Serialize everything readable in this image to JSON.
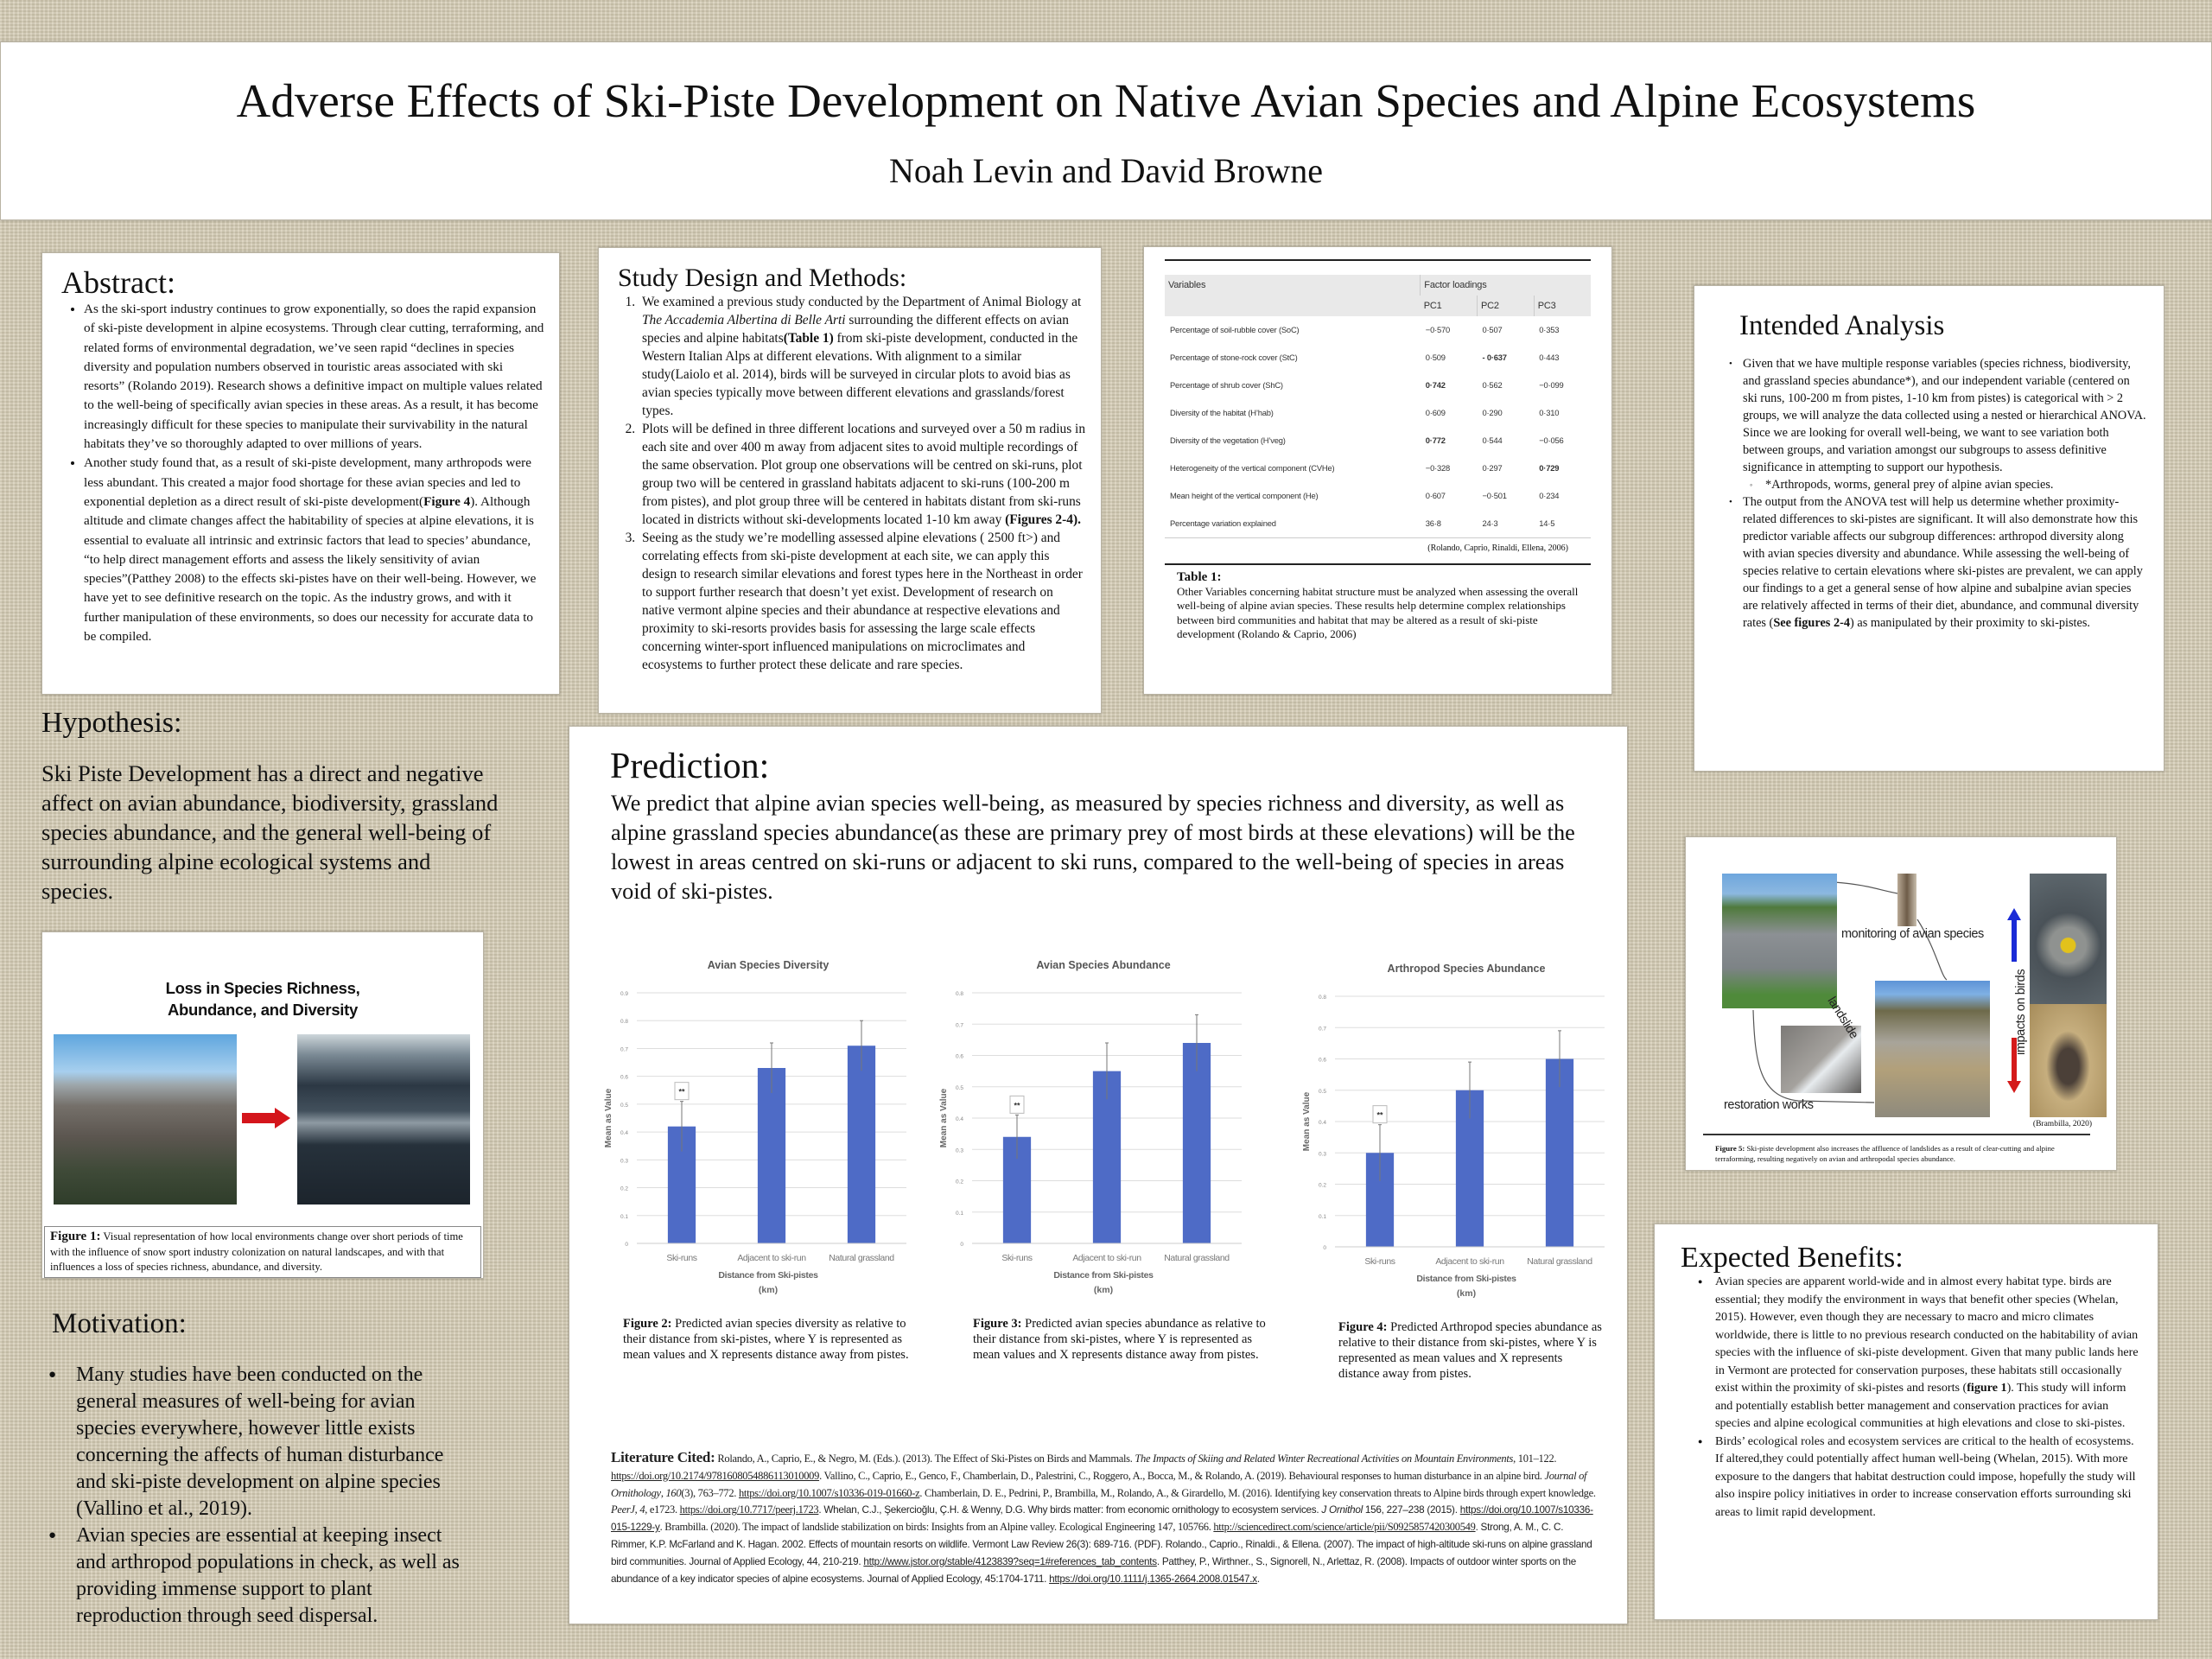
{
  "header": {
    "title": "Adverse Effects of Ski-Piste Development on Native Avian Species and Alpine Ecosystems",
    "authors": "Noah Levin and David Browne"
  },
  "abstract": {
    "heading": "Abstract:",
    "items": [
      [
        {
          "t": "As the ski-sport industry continues to grow exponentially, so does the rapid expansion of ski-piste development in alpine ecosystems. Through clear cutting, terraforming, and related forms of environmental degradation, we’ve seen rapid “declines in species diversity and population numbers observed in touristic areas associated with ski resorts” (Rolando 2019). Research shows a definitive impact on multiple values related to the well-being of specifically avian species in these areas. As a result, it has become increasingly difficult for these species to manipulate their survivability in the natural habitats they’ve so thoroughly adapted to over millions of years."
        }
      ],
      [
        {
          "t": "Another study found that, as a result of ski-piste development, many arthropods were less abundant.  This created a major food shortage for these avian species and led to exponential depletion as a direct result of ski-piste development("
        },
        {
          "t": "Figure 4",
          "s": "b"
        },
        {
          "t": "). Although altitude and climate changes affect the habitability of species at alpine elevations, it is essential to evaluate all intrinsic and extrinsic factors that lead to species’ abundance, “to help direct management efforts and assess the likely sensitivity of avian species”(Patthey 2008) to the effects ski-pistes have on their well-being.  However, we have yet to see definitive research on the topic. As the industry grows, and with it further manipulation of these environments, so does our necessity for accurate data to be compiled."
        }
      ]
    ]
  },
  "methods": {
    "heading": "Study Design and Methods:",
    "items": [
      [
        {
          "t": "We examined a previous study conducted by the Department of Animal Biology at "
        },
        {
          "t": "The Accademia Albertina di Belle Arti",
          "s": "i"
        },
        {
          "t": " surrounding the different effects on avian species and alpine habitats"
        },
        {
          "t": "(Table 1)",
          "s": "b"
        },
        {
          "t": " from ski-piste development, conducted in the Western Italian Alps at different elevations. With alignment to a similar study(Laiolo et al. 2014), birds will be surveyed in circular plots to avoid bias as avian species typically move between different elevations and grasslands/forest types."
        }
      ],
      [
        {
          "t": " Plots will be defined in three different locations and surveyed over a 50 m radius in each site and over 400 m away from adjacent sites to avoid multiple recordings of the same observation. Plot group one observations will be centred on ski-runs, plot group two will be centered in grassland habitats adjacent to ski-runs (100-200 m from pistes), and plot group three will be centered in habitats distant from ski-runs located in districts without ski-developments located 1-10 km away "
        },
        {
          "t": "(Figures 2-4).",
          "s": "b"
        }
      ],
      [
        {
          "t": "Seeing as the study we’re modelling assessed alpine elevations ( 2500 ft>) and correlating effects from ski-piste development at each site, we can apply this design to research similar elevations and forest types here in the Northeast in order to support further research that doesn’t yet exist. Development of research on native vermont alpine species and their abundance at respective elevations and proximity to ski-resorts provides basis for assessing the large scale effects concerning winter-sport influenced manipulations on microclimates and ecosystems to further protect these delicate and rare species."
        }
      ]
    ]
  },
  "table1": {
    "col_variables": "Variables",
    "col_group": "Factor loadings",
    "cols": [
      "PC1",
      "PC2",
      "PC3"
    ],
    "rows": [
      {
        "label": "Percentage of soil-rubble cover (SoC)",
        "v": [
          "−0·570",
          "0·507",
          "0·353"
        ]
      },
      {
        "label": "Percentage of stone-rock cover (StC)",
        "v": [
          "0·509",
          "- 0·637",
          "0·443"
        ]
      },
      {
        "label": "Percentage of shrub cover (ShC)",
        "v": [
          "0·742",
          "0·562",
          "−0·099"
        ]
      },
      {
        "label": "Diversity of the habitat (H’hab)",
        "v": [
          "0·609",
          "0·290",
          "0·310"
        ]
      },
      {
        "label": "Diversity of the vegetation (H’veg)",
        "v": [
          "0·772",
          "0·544",
          "−0·056"
        ]
      },
      {
        "label": "Heterogeneity of the vertical component (CVHe)",
        "v": [
          "−0·328",
          "0·297",
          "0·729"
        ]
      },
      {
        "label": "Mean height of the vertical component (He)",
        "v": [
          "0·607",
          "−0·501",
          "0·234"
        ]
      },
      {
        "label": "Percentage variation explained",
        "v": [
          "36·8",
          "24·3",
          "14·5"
        ]
      }
    ],
    "bold_cells": [
      [
        1,
        1
      ],
      [
        2,
        0
      ],
      [
        4,
        0
      ],
      [
        5,
        2
      ]
    ],
    "source": "(Rolando, Caprio, Rinaldi, Ellena, 2006)",
    "caption_label": "Table 1:",
    "caption": "Other Variables concerning habitat structure must be analyzed when assessing the overall well-being of alpine avian species. These results help determine complex relationships between bird communities and habitat that may be altered as a result of ski-piste development (Rolando & Caprio, 2006)"
  },
  "analysis": {
    "heading": "Intended Analysis",
    "item1": "Given that we have multiple response variables (species richness, biodiversity, and grassland species abundance*), and our independent variable (centered on ski runs, 100-200 m from pistes, 1-10 km from pistes) is categorical with > 2 groups, we will analyze the data collected using a nested or hierarchical ANOVA. Since we are looking for overall well-being, we want to see variation both between groups, and variation amongst our subgroups to assess definitive significance in attempting to support our hypothesis.",
    "sub": "*Arthropods, worms, general prey of alpine avian species.",
    "item2": [
      {
        "t": "The output from the ANOVA test will help us determine whether proximity-related differences to ski-pistes are significant.  It will also demonstrate how this predictor variable affects our subgroup differences: arthropod diversity along with avian species diversity and abundance. While assessing the well-being of species relative to certain elevations where ski-pistes are prevalent, we can apply our findings to a get a general sense of how alpine and subalpine avian species are relatively affected in terms of their diet, abundance, and communal diversity rates ("
      },
      {
        "t": "See figures 2-4",
        "s": "b"
      },
      {
        "t": ") as manipulated by their proximity to ski-pistes."
      }
    ]
  },
  "hypothesis": {
    "heading": "Hypothesis:",
    "text": "Ski Piste Development has a direct and negative affect on avian abundance, biodiversity, grassland species abundance, and the general well-being of surrounding alpine ecological systems and species."
  },
  "figure1": {
    "title_line1": "Loss in Species Richness,",
    "title_line2": "Abundance, and Diversity",
    "caption_label": "Figure 1:",
    "caption": " Visual representation of how local environments change over short periods of time with the influence of snow sport industry colonization on natural landscapes, and with that influences a loss of species richness, abundance, and diversity."
  },
  "motivation": {
    "heading": "Motivation:",
    "items": [
      "Many studies have been conducted on the general measures of well-being for avian species everywhere, however little exists concerning the affects of human disturbance and ski-piste development on alpine species (Vallino et al., 2019).",
      "Avian species are essential at keeping insect and arthropod populations in check, as well as providing immense support to plant reproduction through seed dispersal."
    ]
  },
  "prediction": {
    "heading": "Prediction:",
    "text": "We predict that alpine avian species well-being, as measured by species richness and diversity, as well as alpine grassland species abundance(as these are primary prey of most birds at these elevations) will be the lowest in areas centred on ski-runs or adjacent to ski runs, compared to the well-being of species in areas void of ski-pistes."
  },
  "chart_data": [
    {
      "type": "bar",
      "title": "Avian Species Diversity",
      "categories": [
        "Ski-runs",
        "Adjacent to ski-run",
        "Natural grassland"
      ],
      "values": [
        0.42,
        0.63,
        0.71
      ],
      "error": [
        0.09,
        0.09,
        0.09
      ],
      "annotation": "**",
      "annotation_category": "Ski-runs",
      "xlabel_line1": "Distance from Ski-pistes",
      "xlabel_line2": "(km)",
      "ylabel": "Mean as Value",
      "ylim": [
        0,
        0.9
      ],
      "yticks": [
        "0",
        "0.1",
        "0.2",
        "0.3",
        "0.4",
        "0.5",
        "0.6",
        "0.7",
        "0.8",
        "0.9"
      ],
      "grid": true,
      "color": "#4e6bc6",
      "caption_label": "Figure 2:",
      "caption": " Predicted avian species diversity as relative to their distance from ski-pistes, where Y is represented as mean values and X represents distance away from pistes."
    },
    {
      "type": "bar",
      "title": "Avian Species Abundance",
      "categories": [
        "Ski-runs",
        "Adjacent to ski-run",
        "Natural grassland"
      ],
      "values": [
        0.34,
        0.55,
        0.64
      ],
      "error": [
        0.07,
        0.09,
        0.09
      ],
      "annotation": "**",
      "annotation_category": "Ski-runs",
      "xlabel_line1": "Distance from Ski-pistes",
      "xlabel_line2": "(km)",
      "ylabel": "Mean as Value",
      "ylim": [
        0,
        0.8
      ],
      "yticks": [
        "0",
        "0.1",
        "0.2",
        "0.3",
        "0.4",
        "0.5",
        "0.6",
        "0.7",
        "0.8"
      ],
      "grid": true,
      "color": "#4e6bc6",
      "caption_label": "Figure 3:",
      "caption": " Predicted avian species abundance as relative to their distance from ski-pistes, where Y is represented as mean values and X represents distance away from pistes."
    },
    {
      "type": "bar",
      "title": "Arthropod Species Abundance",
      "categories": [
        "Ski-runs",
        "Adjacent to ski-run",
        "Natural grassland"
      ],
      "values": [
        0.3,
        0.5,
        0.6
      ],
      "error": [
        0.09,
        0.09,
        0.09
      ],
      "annotation": "**",
      "annotation_category": "Ski-runs",
      "xlabel_line1": "Distance from Ski-pistes",
      "xlabel_line2": "(km)",
      "ylabel": "Mean as Value",
      "ylim": [
        0,
        0.8
      ],
      "yticks": [
        "0",
        "0.1",
        "0.2",
        "0.3",
        "0.4",
        "0.5",
        "0.6",
        "0.7",
        "0.8"
      ],
      "grid": true,
      "color": "#4e6bc6",
      "caption_label": "Figure 4:",
      "caption": " Predicted Arthropod species abundance as relative to their distance from ski-pistes, where Y is represented as mean values and X represents distance away from pistes."
    }
  ],
  "literature": {
    "heading": "Literature Cited:",
    "segments": [
      {
        "t": " Rolando, A., Caprio, E., & Negro, M. (Eds.). (2013). The Effect of Ski-Pistes on Birds and Mammals. ",
        "s": "ser"
      },
      {
        "t": "The Impacts of Skiing and Related Winter Recreational Activities on Mountain Environments",
        "s": "ser i"
      },
      {
        "t": ", 101–122. ",
        "s": "ser"
      },
      {
        "t": "https://doi.org/10.2174/9781608054886113010009",
        "s": "ser u"
      },
      {
        "t": ". Vallino, C., Caprio, E., Genco, F., Chamberlain, D., Palestrini, C., Roggero, A., Bocca, M., & Rolando, A. (2019). Behavioural responses to human disturbance in an alpine bird. ",
        "s": "ser"
      },
      {
        "t": "Journal of Ornithology",
        "s": "ser i"
      },
      {
        "t": ", ",
        "s": "ser"
      },
      {
        "t": "160",
        "s": "ser i"
      },
      {
        "t": "(3), 763–772. ",
        "s": "ser"
      },
      {
        "t": "https://doi.org/10.1007/s10336-019-01660-z",
        "s": "ser u"
      },
      {
        "t": ". Chamberlain, D. E., Pedrini, P., Brambilla, M., Rolando, A., & Girardello, M. (2016). Identifying key conservation threats to Alpine birds through expert knowledge. ",
        "s": "ser"
      },
      {
        "t": "PeerJ",
        "s": "ser i"
      },
      {
        "t": ", ",
        "s": "ser"
      },
      {
        "t": "4",
        "s": "ser i"
      },
      {
        "t": ", e1723. ",
        "s": "ser"
      },
      {
        "t": "https://doi.org/10.7717/peerj.1723",
        "s": "ser u"
      },
      {
        "t": ". Whelan, C.J., Şekercioğlu, Ç.H. & Wenny, D.G. Why birds matter: from economic ornithology to ecosystem services. "
      },
      {
        "t": "J Ornithol",
        "s": "i"
      },
      {
        "t": " 156, 227–238 (2015). "
      },
      {
        "t": "https://doi.org/10.1007/s10336-015-1229-y",
        "s": "u"
      },
      {
        "t": ". Brambilla. (2020). The impact of landslide stabilization on birds: Insights from an Alpine valley. Ecological Engineering 147, 105766. ",
        "s": "ser"
      },
      {
        "t": "http://sciencedirect.com/science/article/pii/S0925857420300549",
        "s": "ser u"
      },
      {
        "t": ". Strong, A. M., C. C. Rimmer, K.P. McFarland and K. Hagan. 2002. Effects of mountain resorts on wildlife. Vermont Law Review 26(3): 689-716. (PDF). Rolando., Caprio., Rinaldi., & Ellena. (2007). The impact of high-altitude ski-runs on alpine grassland bird communities. Journal of Applied Ecology, 44, 210-219. "
      },
      {
        "t": "http://www.jstor.org/stable/4123839?seq=1#references_tab_contents",
        "s": "u"
      },
      {
        "t": ". Patthey, P., Wirthner., S., Signorell, N., Arlettaz, R. (2008). Impacts of outdoor winter sports on the abundance of a key indicator species of alpine ecosystems. Journal of Applied Ecology, 45:1704-1711. "
      },
      {
        "t": "https://doi.org/10.1111/j.1365-2664.2008.01547.x",
        "s": "u"
      },
      {
        "t": "."
      }
    ]
  },
  "figure5": {
    "label_monitoring": "monitoring of avian species",
    "label_landslide": "landslide",
    "label_restoration": "restoration works",
    "label_impacts": "impacts on birds",
    "source": "(Brambilla, 2020)",
    "caption_label": "Figure 5:",
    "caption": " Ski-piste development also increases the affluence of landslides as a result of clear-cutting and alpine terraforming, resulting negatively on avian and arthropodal species abundance.",
    "up_color": "#1a2bd6",
    "down_color": "#d41a1a"
  },
  "benefits": {
    "heading": "Expected Benefits:",
    "items": [
      [
        {
          "t": "Avian species are apparent world-wide and in almost every habitat type. birds are essential; they modify the environment in ways that benefit other species (Whelan, 2015). However, even though they  are necessary to macro and micro climates worldwide, there is little to no previous research conducted on the habitability of avian species with the influence of ski-piste development. Given that many public lands here in Vermont are protected for conservation purposes, these habitats still occasionally exist within the proximity of ski-pistes and resorts ("
        },
        {
          "t": "figure 1",
          "s": "b"
        },
        {
          "t": "). This study will inform and potentially establish better management and conservation practices for avian species and alpine ecological communities at high elevations and close to ski-pistes."
        }
      ],
      [
        {
          "t": "Birds’ ecological roles and ecosystem services are critical to the health of ecosystems. If altered,they could potentially affect human well-being (Whelan, 2015). With more exposure to the dangers that habitat destruction could impose, hopefully the study will also inspire policy initiatives in order to increase conservation efforts surrounding ski areas to limit rapid development."
        }
      ]
    ]
  }
}
